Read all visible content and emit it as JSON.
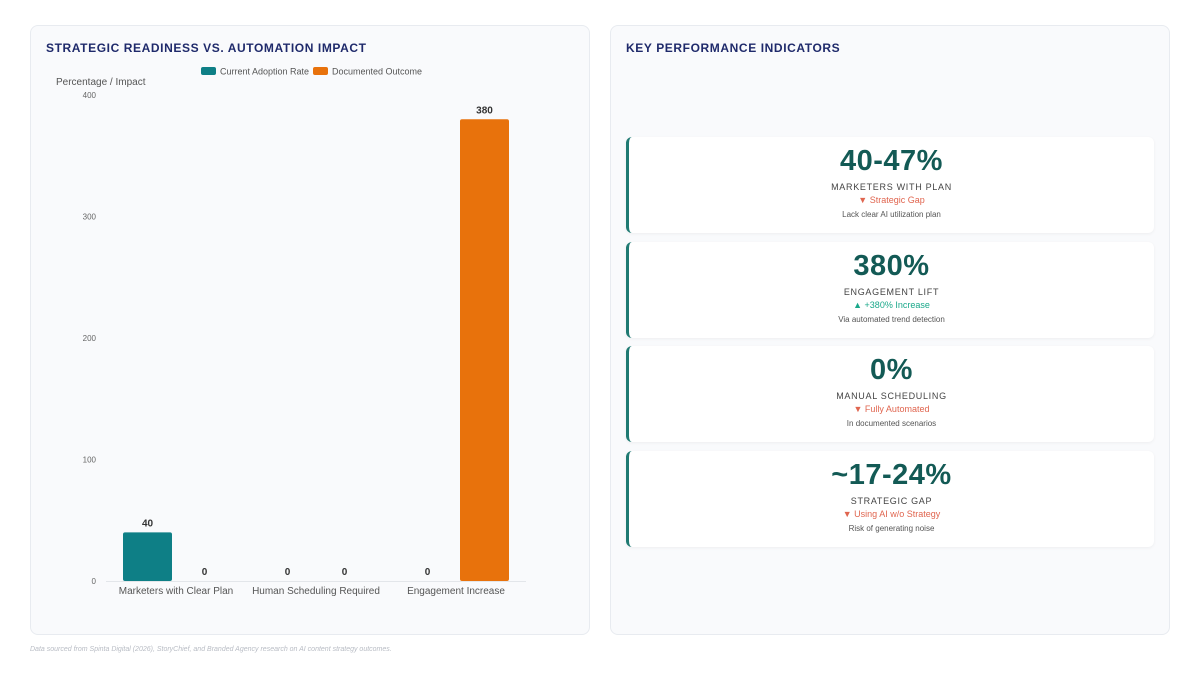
{
  "left_panel": {
    "title": "STRATEGIC READINESS VS. AUTOMATION IMPACT"
  },
  "right_panel": {
    "title": "KEY PERFORMANCE INDICATORS",
    "kpis": [
      {
        "value": "40-47%",
        "label": "MARKETERS WITH PLAN",
        "trend": "▼ Strategic Gap",
        "trend_dir": "down",
        "desc": "Lack clear AI utilization plan"
      },
      {
        "value": "380%",
        "label": "ENGAGEMENT LIFT",
        "trend": "▲ +380% Increase",
        "trend_dir": "up",
        "desc": "Via automated trend detection"
      },
      {
        "value": "0%",
        "label": "MANUAL SCHEDULING",
        "trend": "▼ Fully Automated",
        "trend_dir": "down",
        "desc": "In documented scenarios"
      },
      {
        "value": "~17-24%",
        "label": "STRATEGIC GAP",
        "trend": "▼ Using AI w/o Strategy",
        "trend_dir": "down",
        "desc": "Risk of generating noise"
      }
    ],
    "colors": {
      "up": "#1aa88a",
      "down": "#e0654f"
    }
  },
  "footnote": "Data sourced from Spinta Digital (2026), StoryChief, and Branded Agency research on AI content strategy outcomes.",
  "chart_data": {
    "type": "bar",
    "categories": [
      "Marketers with Clear Plan",
      "Human Scheduling Required",
      "Engagement Increase"
    ],
    "series": [
      {
        "name": "Current Adoption Rate",
        "values": [
          40,
          0,
          0
        ],
        "color": "#0e7f86"
      },
      {
        "name": "Documented Outcome",
        "values": [
          0,
          0,
          380
        ],
        "color": "#e8720c"
      }
    ],
    "ylabel": "Percentage / Impact",
    "ylim": [
      0,
      400
    ],
    "yticks": [
      0,
      100,
      200,
      300,
      400
    ],
    "legend": "top",
    "grid": false,
    "data_labels": true
  }
}
